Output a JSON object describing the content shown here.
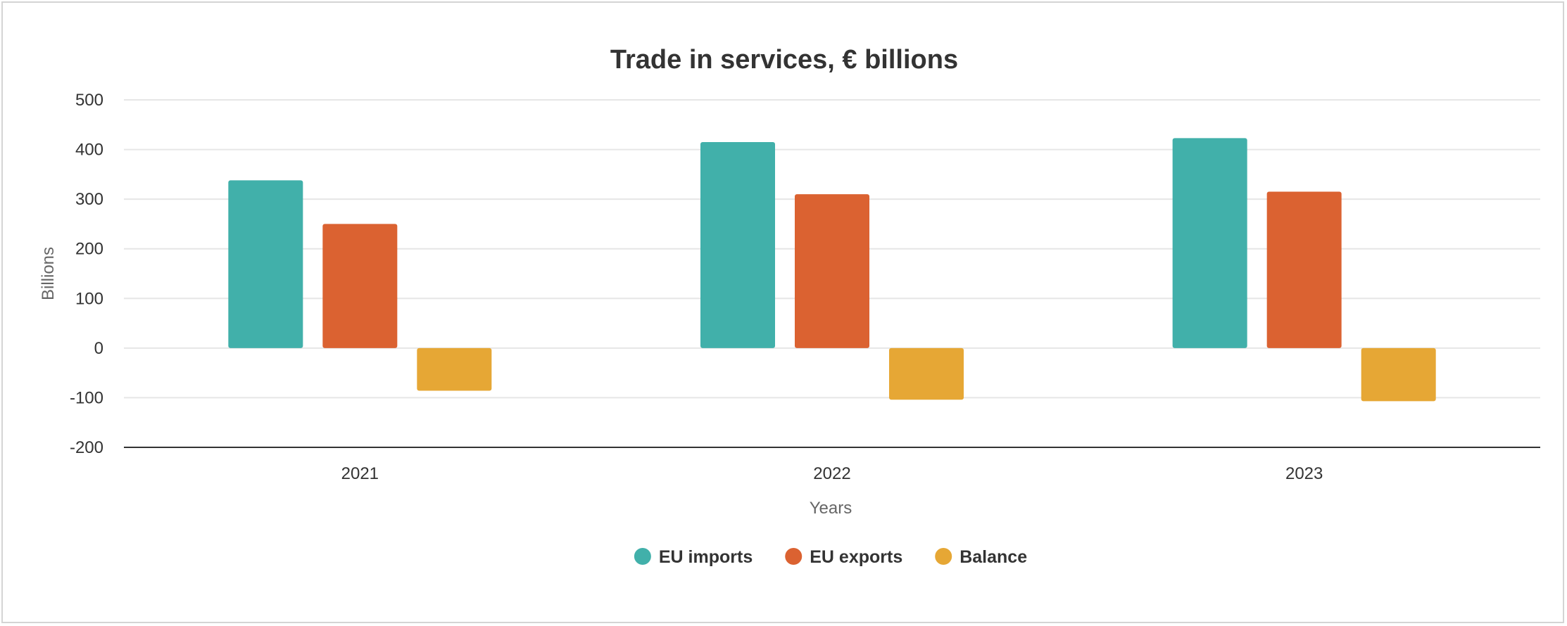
{
  "chart_data": {
    "type": "bar",
    "title": "Trade in services, € billions",
    "xlabel": "Years",
    "ylabel": "Billions",
    "categories": [
      "2021",
      "2022",
      "2023"
    ],
    "yticks": [
      "500",
      "400",
      "300",
      "200",
      "100",
      "0",
      "-100",
      "-200"
    ],
    "ylim": [
      -200,
      500
    ],
    "grid": true,
    "legend_position": "bottom-center",
    "series": [
      {
        "name": "EU imports",
        "color": "#41b0aa",
        "values": [
          338,
          415,
          423
        ]
      },
      {
        "name": "EU exports",
        "color": "#db6231",
        "values": [
          250,
          310,
          315
        ]
      },
      {
        "name": "Balance",
        "color": "#e6a735",
        "values": [
          -86,
          -104,
          -107
        ]
      }
    ]
  }
}
